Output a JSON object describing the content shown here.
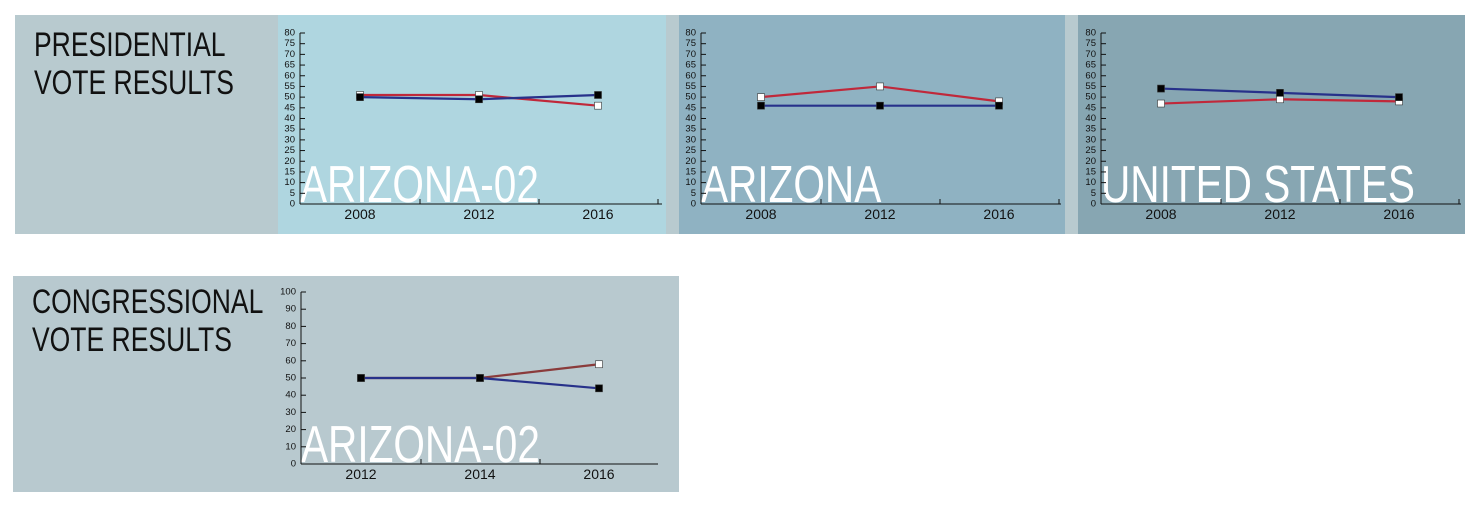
{
  "headings": [
    [
      "PRESIDENTIAL",
      "VOTE RESULTS"
    ],
    [
      "CONGRESSIONAL",
      "VOTE RESULTS"
    ]
  ],
  "chart_data": [
    {
      "type": "line",
      "title": "ARIZONA-02",
      "categories": [
        "2008",
        "2012",
        "2016"
      ],
      "ylim": [
        0,
        80
      ],
      "yticks": [
        0,
        5,
        10,
        15,
        20,
        25,
        30,
        35,
        40,
        45,
        50,
        55,
        60,
        65,
        70,
        75,
        80
      ],
      "series": [
        {
          "color": "#c0283a",
          "marker_color": "#ffffff",
          "values": [
            51,
            51,
            46
          ]
        },
        {
          "color": "#27318a",
          "marker_color": "#000000",
          "values": [
            50,
            49,
            51
          ]
        }
      ]
    },
    {
      "type": "line",
      "title": "ARIZONA",
      "categories": [
        "2008",
        "2012",
        "2016"
      ],
      "ylim": [
        0,
        80
      ],
      "yticks": [
        0,
        5,
        10,
        15,
        20,
        25,
        30,
        35,
        40,
        45,
        50,
        55,
        60,
        65,
        70,
        75,
        80
      ],
      "series": [
        {
          "color": "#c0283a",
          "marker_color": "#ffffff",
          "values": [
            50,
            55,
            48
          ]
        },
        {
          "color": "#27318a",
          "marker_color": "#000000",
          "values": [
            46,
            46,
            46
          ]
        }
      ]
    },
    {
      "type": "line",
      "title": "UNITED STATES",
      "categories": [
        "2008",
        "2012",
        "2016"
      ],
      "ylim": [
        0,
        80
      ],
      "yticks": [
        0,
        5,
        10,
        15,
        20,
        25,
        30,
        35,
        40,
        45,
        50,
        55,
        60,
        65,
        70,
        75,
        80
      ],
      "series": [
        {
          "color": "#c0283a",
          "marker_color": "#ffffff",
          "values": [
            47,
            49,
            48
          ]
        },
        {
          "color": "#27318a",
          "marker_color": "#000000",
          "values": [
            54,
            52,
            50
          ]
        }
      ]
    },
    {
      "type": "line",
      "title": "ARIZONA-02",
      "categories": [
        "2012",
        "2014",
        "2016"
      ],
      "ylim": [
        0,
        100
      ],
      "yticks": [
        0,
        10,
        20,
        30,
        40,
        50,
        60,
        70,
        80,
        90,
        100
      ],
      "series": [
        {
          "color": "#8a3b3b",
          "marker_color": "#ffffff",
          "values": [
            50,
            50,
            58
          ]
        },
        {
          "color": "#27318a",
          "marker_color": "#000000",
          "values": [
            50,
            50,
            44
          ]
        }
      ]
    }
  ]
}
